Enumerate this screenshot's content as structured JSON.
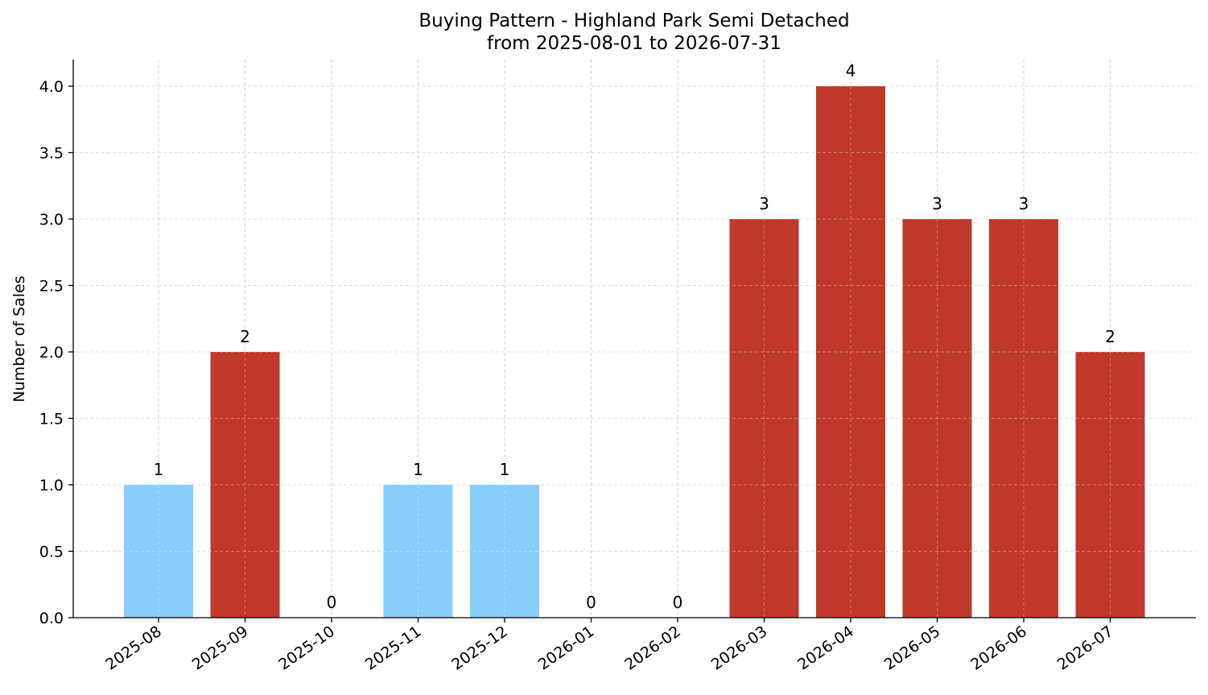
{
  "chart_data": {
    "type": "bar",
    "title": "Buying Pattern - Highland Park Semi Detached",
    "subtitle": "from 2025-08-01 to 2026-07-31",
    "xlabel": "",
    "ylabel": "Number of Sales",
    "categories": [
      "2025-08",
      "2025-09",
      "2025-10",
      "2025-11",
      "2025-12",
      "2026-01",
      "2026-02",
      "2026-03",
      "2026-04",
      "2026-05",
      "2026-06",
      "2026-07"
    ],
    "values": [
      1,
      2,
      0,
      1,
      1,
      0,
      0,
      3,
      4,
      3,
      3,
      2
    ],
    "value_labels": [
      "1",
      "2",
      "0",
      "1",
      "1",
      "0",
      "0",
      "3",
      "4",
      "3",
      "3",
      "2"
    ],
    "bar_colors": [
      "#87CEFA",
      "#C0392B",
      "#87CEFA",
      "#87CEFA",
      "#87CEFA",
      "#87CEFA",
      "#87CEFA",
      "#C0392B",
      "#C0392B",
      "#C0392B",
      "#C0392B",
      "#C0392B"
    ],
    "ylim": [
      0,
      4.2
    ],
    "yticks": [
      "0.0",
      "0.5",
      "1.0",
      "1.5",
      "2.0",
      "2.5",
      "3.0",
      "3.5",
      "4.0"
    ],
    "grid": true,
    "legend": "none"
  }
}
